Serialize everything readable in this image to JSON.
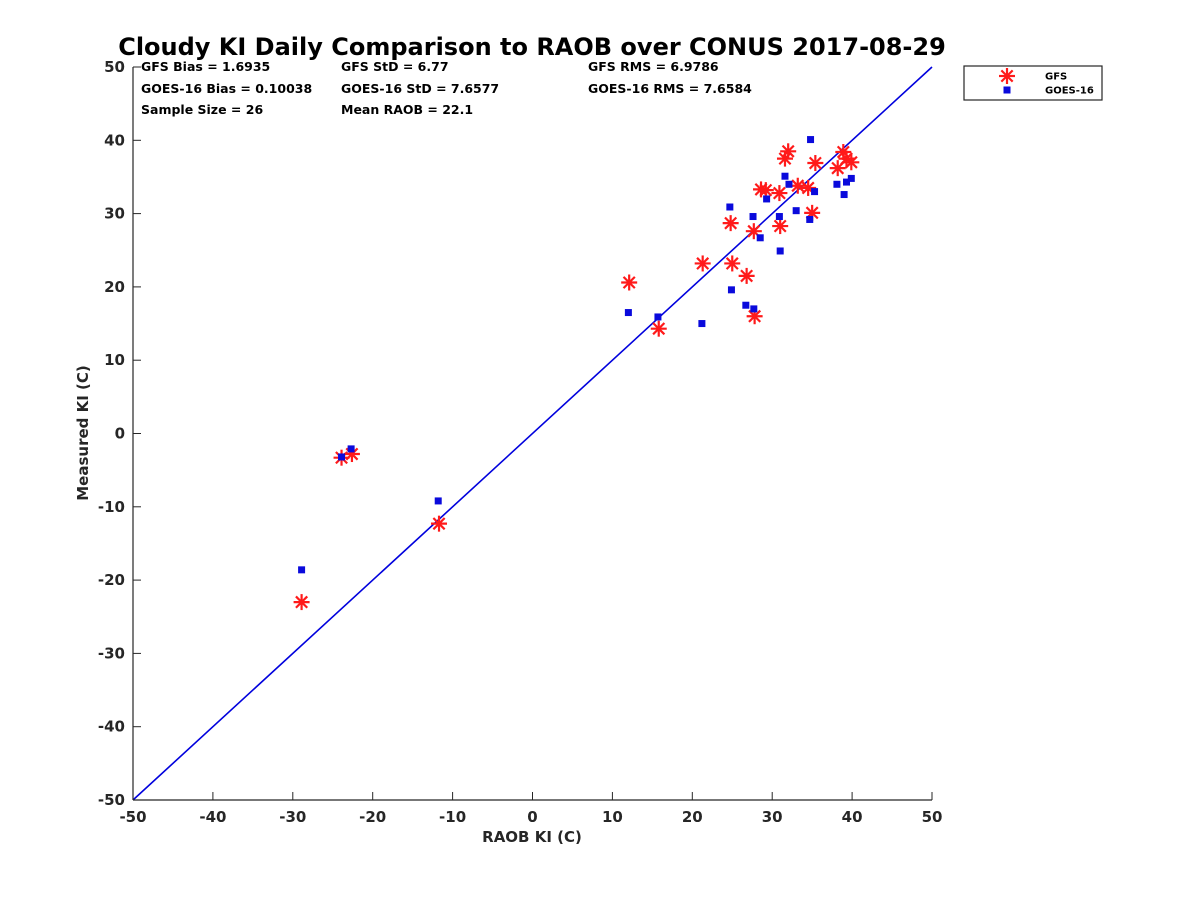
{
  "chart_data": {
    "type": "scatter",
    "title": "Cloudy KI Daily Comparison to RAOB over CONUS 2017-08-29",
    "xlabel": "RAOB KI (C)",
    "ylabel": "Measured KI (C)",
    "xlim": [
      -50,
      50
    ],
    "ylim": [
      -50,
      50
    ],
    "xticks": [
      "-50",
      "-40",
      "-30",
      "-20",
      "-10",
      "0",
      "10",
      "20",
      "30",
      "40",
      "50"
    ],
    "yticks": [
      "50",
      "40",
      "30",
      "20",
      "10",
      "0",
      "-10",
      "-20",
      "-30",
      "-40",
      "-50"
    ],
    "grid": false,
    "legend_position": "outside-top-right",
    "reference_line": {
      "from": [
        -50,
        -50
      ],
      "to": [
        50,
        50
      ],
      "color": "#0000dd"
    },
    "stats": [
      [
        "GFS Bias = 1.6935",
        "GFS StD = 6.77",
        "GFS RMS = 6.9786"
      ],
      [
        "GOES-16 Bias = 0.10038",
        "GOES-16 StD = 7.6577",
        "GOES-16 RMS = 7.6584"
      ],
      [
        "Sample Size = 26",
        "Mean RAOB = 22.1",
        ""
      ]
    ],
    "series": [
      {
        "name": "GFS",
        "marker": "asterisk",
        "color": "#ff1a1a",
        "points": [
          [
            -28.9,
            -23.0
          ],
          [
            -23.9,
            -3.3
          ],
          [
            -22.6,
            -2.8
          ],
          [
            -11.7,
            -12.3
          ],
          [
            12.1,
            20.6
          ],
          [
            15.8,
            14.3
          ],
          [
            21.3,
            23.2
          ],
          [
            24.8,
            28.7
          ],
          [
            25.0,
            23.2
          ],
          [
            26.8,
            21.5
          ],
          [
            27.7,
            27.6
          ],
          [
            27.8,
            16.0
          ],
          [
            28.6,
            33.3
          ],
          [
            29.2,
            33.2
          ],
          [
            30.9,
            32.8
          ],
          [
            31.0,
            28.3
          ],
          [
            31.6,
            37.5
          ],
          [
            32.0,
            38.5
          ],
          [
            33.2,
            33.8
          ],
          [
            34.5,
            33.5
          ],
          [
            35.0,
            30.1
          ],
          [
            35.4,
            36.9
          ],
          [
            38.2,
            36.2
          ],
          [
            38.9,
            38.4
          ],
          [
            39.3,
            37.5
          ],
          [
            39.9,
            37.0
          ]
        ]
      },
      {
        "name": "GOES-16",
        "marker": "square",
        "color": "#0a0adc",
        "points": [
          [
            -28.9,
            -18.6
          ],
          [
            -23.9,
            -3.2
          ],
          [
            -22.7,
            -2.1
          ],
          [
            -11.8,
            -9.2
          ],
          [
            12.0,
            16.5
          ],
          [
            15.7,
            15.9
          ],
          [
            21.2,
            15.0
          ],
          [
            24.7,
            30.9
          ],
          [
            24.9,
            19.6
          ],
          [
            26.7,
            17.5
          ],
          [
            27.6,
            29.6
          ],
          [
            27.7,
            17.0
          ],
          [
            28.5,
            26.7
          ],
          [
            29.3,
            32.0
          ],
          [
            30.9,
            29.6
          ],
          [
            31.0,
            24.9
          ],
          [
            31.6,
            35.1
          ],
          [
            32.1,
            34.0
          ],
          [
            33.0,
            30.4
          ],
          [
            34.7,
            29.2
          ],
          [
            34.8,
            40.1
          ],
          [
            35.3,
            33.0
          ],
          [
            38.1,
            34.0
          ],
          [
            39.0,
            32.6
          ],
          [
            39.3,
            34.3
          ],
          [
            39.9,
            34.8
          ]
        ]
      }
    ]
  }
}
